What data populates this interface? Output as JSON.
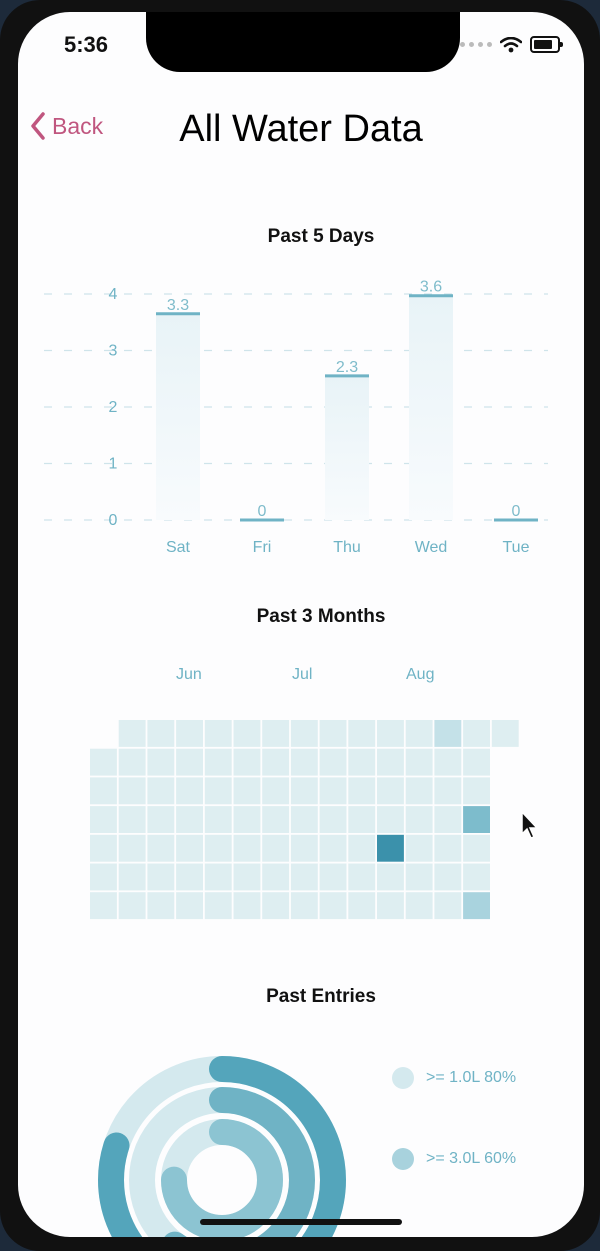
{
  "status_bar": {
    "time": "5:36"
  },
  "nav": {
    "back_label": "Back",
    "title": "All Water Data"
  },
  "colors": {
    "accent": "#c0567f",
    "teal": "#5fa9bd",
    "cell_light": "#deeef1"
  },
  "past5": {
    "title": "Past 5 Days",
    "y_ticks": [
      "0",
      "1",
      "2",
      "3",
      "4"
    ],
    "chart_data": {
      "type": "bar",
      "title": "Past 5 Days",
      "categories": [
        "Sat",
        "Fri",
        "Thu",
        "Wed",
        "Tue"
      ],
      "values": [
        3.3,
        0,
        2.3,
        3.6,
        0
      ],
      "ylim": [
        0,
        4
      ],
      "bar_value_top": [
        3.65,
        0,
        2.55,
        3.97,
        0
      ]
    }
  },
  "past3": {
    "title": "Past 3 Months",
    "months": [
      "Jun",
      "Jul",
      "Aug"
    ],
    "heatmap": {
      "rows": [
        [
          null,
          1,
          1,
          1,
          1,
          1,
          1,
          1,
          1,
          1,
          1,
          1,
          2,
          1,
          1
        ],
        [
          1,
          1,
          1,
          1,
          1,
          1,
          1,
          1,
          1,
          1,
          1,
          1,
          1,
          1,
          null
        ],
        [
          1,
          1,
          1,
          1,
          1,
          1,
          1,
          1,
          1,
          1,
          1,
          1,
          1,
          1,
          null
        ],
        [
          1,
          1,
          1,
          1,
          1,
          1,
          1,
          1,
          1,
          1,
          1,
          1,
          1,
          4,
          null
        ],
        [
          1,
          1,
          1,
          1,
          1,
          1,
          1,
          1,
          1,
          1,
          6,
          1,
          1,
          1,
          null
        ],
        [
          1,
          1,
          1,
          1,
          1,
          1,
          1,
          1,
          1,
          1,
          1,
          1,
          1,
          1,
          null
        ],
        [
          1,
          1,
          1,
          1,
          1,
          1,
          1,
          1,
          1,
          1,
          1,
          1,
          1,
          3,
          null
        ]
      ]
    }
  },
  "entries": {
    "title": "Past Entries",
    "legend": [
      {
        "label": ">= 1.0L 80%",
        "color": "#d4e9ee"
      },
      {
        "label": ">= 3.0L 60%",
        "color": "#a8d2dd"
      }
    ],
    "rings": [
      {
        "fraction": 0.8,
        "color": "#54a5bb",
        "track": "#d4e9ee"
      },
      {
        "fraction": 0.6,
        "color": "#6fb3c5",
        "track": "#d4e9ee"
      },
      {
        "fraction": 0.75,
        "color": "#8cc4d2",
        "track": "#d4e9ee"
      }
    ]
  }
}
